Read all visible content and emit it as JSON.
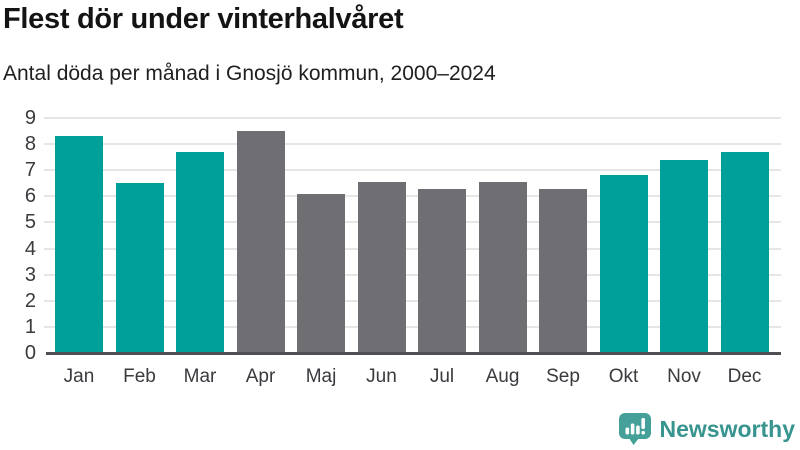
{
  "header": {
    "title": "Flest dör under vinterhalvåret",
    "subtitle": "Antal döda per månad i Gnosjö kommun, 2000–2024"
  },
  "chart_data": {
    "type": "bar",
    "title": "Flest dör under vinterhalvåret",
    "subtitle": "Antal döda per månad i Gnosjö kommun, 2000–2024",
    "categories": [
      "Jan",
      "Feb",
      "Mar",
      "Apr",
      "Maj",
      "Jun",
      "Jul",
      "Aug",
      "Sep",
      "Okt",
      "Nov",
      "Dec"
    ],
    "values": [
      8.3,
      6.5,
      7.7,
      8.5,
      6.1,
      6.55,
      6.3,
      6.55,
      6.3,
      6.8,
      7.4,
      7.7
    ],
    "highlighted": [
      true,
      true,
      true,
      false,
      false,
      false,
      false,
      false,
      false,
      true,
      true,
      true
    ],
    "palette": {
      "highlight": "#00a09a",
      "default": "#6e6e73"
    },
    "xlabel": "",
    "ylabel": "",
    "ylim": [
      0,
      9
    ],
    "yticks": [
      0,
      1,
      2,
      3,
      4,
      5,
      6,
      7,
      8,
      9
    ],
    "grid": true,
    "legend": "none"
  },
  "footer": {
    "brand": "Newsworthy",
    "brand_color": "#37948e",
    "logo_icon": "newsworthy-logo-icon"
  }
}
